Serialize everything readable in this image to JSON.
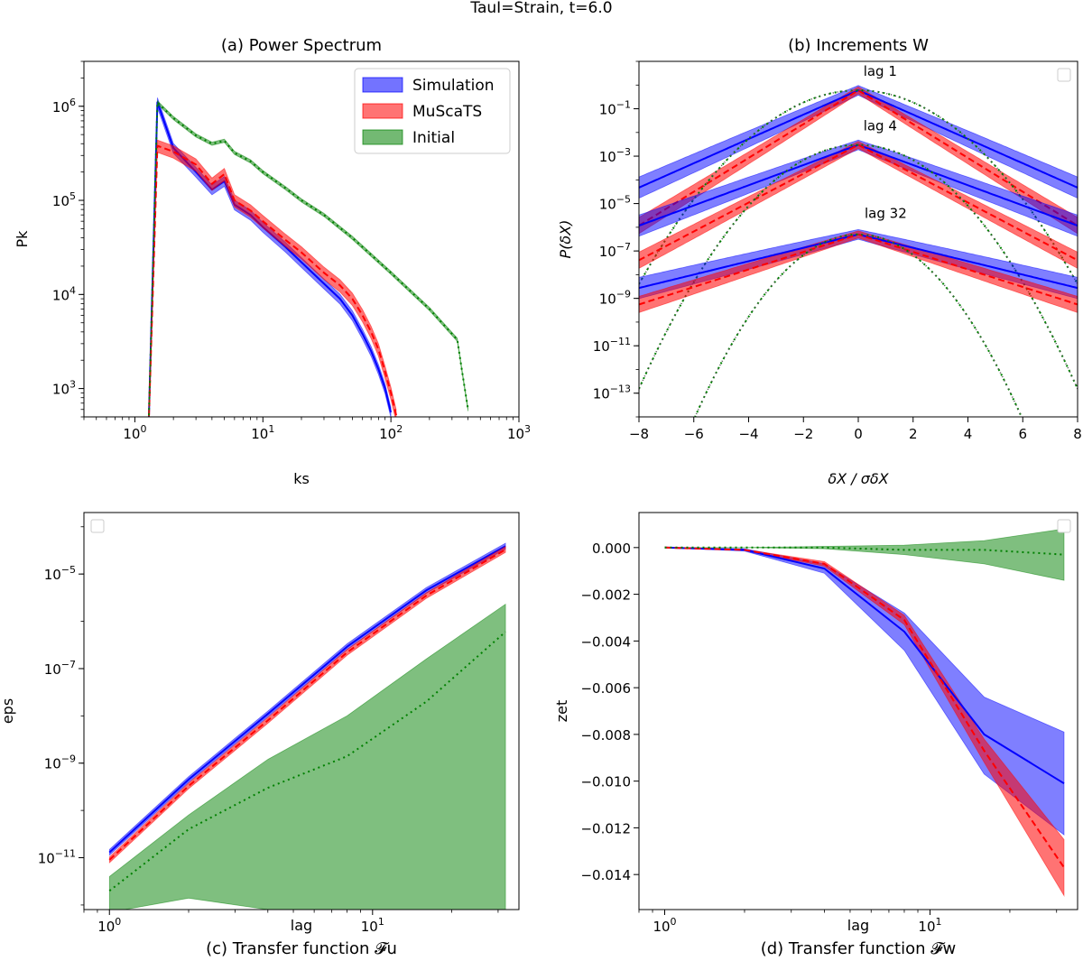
{
  "figure": {
    "suptitle": "TauI=Strain, t=6.0"
  },
  "colors": {
    "simulation": "#0000ff",
    "muscats": "#ff0000",
    "initial": "#008000",
    "gaussian": "#555555"
  },
  "chart_data": [
    {
      "id": "a",
      "type": "line",
      "title": "(a)  Power Spectrum",
      "xlabel": "ks",
      "ylabel": "Pk",
      "xscale": "log",
      "yscale": "log",
      "xlim": [
        0.4,
        1000
      ],
      "ylim": [
        500,
        3000000
      ],
      "xticks": [
        {
          "v": 1,
          "base": "10",
          "exp": "0"
        },
        {
          "v": 10,
          "base": "10",
          "exp": "1"
        },
        {
          "v": 100,
          "base": "10",
          "exp": "2"
        },
        {
          "v": 1000,
          "base": "10",
          "exp": "3"
        }
      ],
      "yticks": [
        {
          "v": 1000,
          "base": "10",
          "exp": "3"
        },
        {
          "v": 10000,
          "base": "10",
          "exp": "4"
        },
        {
          "v": 100000,
          "base": "10",
          "exp": "5"
        },
        {
          "v": 1000000,
          "base": "10",
          "exp": "6"
        }
      ],
      "legend": {
        "position": "top-right",
        "entries": [
          "Simulation",
          "MuScaTS",
          "Initial"
        ]
      },
      "series": [
        {
          "name": "Simulation",
          "color": "simulation",
          "style": "solid",
          "band": 0.12,
          "x": [
            1.28,
            1.5,
            2,
            3,
            4,
            5,
            6,
            8,
            10,
            15,
            20,
            30,
            40,
            50,
            60,
            70,
            80,
            90,
            100
          ],
          "y": [
            400,
            1100000,
            360000,
            200000,
            130000,
            160000,
            90000,
            70000,
            52000,
            32000,
            22000,
            13000,
            9000,
            6000,
            3800,
            2500,
            1600,
            1000,
            560
          ]
        },
        {
          "name": "MuScaTS",
          "color": "muscats",
          "style": "dashed",
          "band": 0.15,
          "x": [
            1.28,
            1.5,
            2,
            3,
            4,
            5,
            6,
            8,
            10,
            15,
            20,
            30,
            40,
            50,
            60,
            70,
            80,
            90,
            100,
            110
          ],
          "y": [
            400,
            380000,
            330000,
            240000,
            150000,
            190000,
            100000,
            78000,
            60000,
            38000,
            28000,
            17000,
            12500,
            9000,
            6000,
            4000,
            2600,
            1500,
            900,
            520
          ]
        },
        {
          "name": "Initial",
          "color": "initial",
          "style": "dotted",
          "band": 0.04,
          "x": [
            1.28,
            1.5,
            2,
            3,
            4,
            5,
            6,
            8,
            10,
            15,
            20,
            30,
            50,
            100,
            200,
            330,
            360,
            400
          ],
          "y": [
            400,
            1100000,
            750000,
            490000,
            400000,
            430000,
            320000,
            260000,
            200000,
            135000,
            100000,
            70000,
            40000,
            17000,
            7000,
            3300,
            1500,
            600
          ]
        }
      ]
    },
    {
      "id": "b",
      "type": "line",
      "title": "(b)  Increments W",
      "xlabel": "δX / σδX",
      "ylabel": "P(δX)",
      "xscale": "linear",
      "yscale": "log",
      "xlim": [
        -8,
        8
      ],
      "ylim": [
        1e-14,
        10
      ],
      "xticks": [
        {
          "v": -8,
          "t": "−8"
        },
        {
          "v": -6,
          "t": "−6"
        },
        {
          "v": -4,
          "t": "−4"
        },
        {
          "v": -2,
          "t": "−2"
        },
        {
          "v": 0,
          "t": "0"
        },
        {
          "v": 2,
          "t": "2"
        },
        {
          "v": 4,
          "t": "4"
        },
        {
          "v": 6,
          "t": "6"
        },
        {
          "v": 8,
          "t": "8"
        }
      ],
      "yticks": [
        {
          "v": 1e-13,
          "base": "10",
          "exp": "−13"
        },
        {
          "v": 1e-11,
          "base": "10",
          "exp": "−11"
        },
        {
          "v": 1e-09,
          "base": "10",
          "exp": "−9"
        },
        {
          "v": 1e-07,
          "base": "10",
          "exp": "−7"
        },
        {
          "v": 1e-05,
          "base": "10",
          "exp": "−5"
        },
        {
          "v": 0.001,
          "base": "10",
          "exp": "−3"
        },
        {
          "v": 0.1,
          "base": "10",
          "exp": "−1"
        }
      ],
      "legend": {
        "position": "top-right",
        "entries": []
      },
      "annotations": [
        {
          "text": "lag 1",
          "x": 0.8,
          "y": 2.5
        },
        {
          "text": "lag 4",
          "x": 0.8,
          "y": 0.012
        },
        {
          "text": "lag 32",
          "x": 1.0,
          "y": 2.5e-06
        }
      ],
      "groups": [
        {
          "lag": "lag 1",
          "peak": 0.6,
          "sim_slope": 1.18,
          "mus_slope": 1.64,
          "gauss_var": 1.7
        },
        {
          "lag": "lag 4",
          "peak": 0.003,
          "sim_slope": 0.98,
          "mus_slope": 1.4,
          "gauss_var": 1.35
        },
        {
          "lag": "lag 32",
          "peak": 5e-07,
          "sim_slope": 0.65,
          "mus_slope": 0.85,
          "gauss_var": 1.0
        }
      ]
    },
    {
      "id": "c",
      "type": "line",
      "title": "(c)  Transfer function 𝓕u",
      "xlabel": "lag",
      "ylabel": "eps",
      "xscale": "log",
      "yscale": "log",
      "xlim": [
        0.8,
        36
      ],
      "ylim": [
        8e-13,
        0.0002
      ],
      "xticks": [
        {
          "v": 1,
          "base": "10",
          "exp": "0"
        },
        {
          "v": 10,
          "base": "10",
          "exp": "1"
        }
      ],
      "yticks": [
        {
          "v": 1e-11,
          "base": "10",
          "exp": "−11"
        },
        {
          "v": 1e-09,
          "base": "10",
          "exp": "−9"
        },
        {
          "v": 1e-07,
          "base": "10",
          "exp": "−7"
        },
        {
          "v": 1e-05,
          "base": "10",
          "exp": "−5"
        }
      ],
      "legend": {
        "position": "top-left",
        "entries": []
      },
      "series": [
        {
          "name": "Simulation",
          "color": "simulation",
          "style": "solid",
          "x": [
            1,
            2,
            4,
            8,
            16,
            32
          ],
          "y": [
            1.3e-11,
            4.5e-10,
            1.1e-08,
            2.9e-07,
            4.5e-06,
            3.9e-05
          ]
        },
        {
          "name": "MuScaTS",
          "color": "muscats",
          "style": "dashed",
          "x": [
            1,
            2,
            4,
            8,
            16,
            32
          ],
          "y": [
            9e-12,
            3.3e-10,
            8e-09,
            2.2e-07,
            3.5e-06,
            3.3e-05
          ]
        },
        {
          "name": "Initial",
          "color": "initial",
          "style": "dotted",
          "x": [
            1,
            2,
            4,
            8,
            16,
            32
          ],
          "y": [
            2e-12,
            4e-11,
            3e-10,
            1.4e-09,
            2e-08,
            6e-07
          ],
          "band_upper": [
            4e-12,
            8e-11,
            1.2e-09,
            1e-08,
            1.6e-07,
            2.3e-06
          ],
          "band_lower": [
            7e-13,
            1.4e-12,
            8e-13,
            8e-13,
            8e-13,
            8e-13
          ]
        }
      ]
    },
    {
      "id": "d",
      "type": "line",
      "title": "(d)  Transfer function 𝓕w",
      "xlabel": "lag",
      "ylabel": "zet",
      "xscale": "log",
      "yscale": "linear",
      "xlim": [
        0.8,
        36
      ],
      "ylim": [
        -0.0155,
        0.0015
      ],
      "xticks": [
        {
          "v": 1,
          "base": "10",
          "exp": "0"
        },
        {
          "v": 10,
          "base": "10",
          "exp": "1"
        }
      ],
      "yticks": [
        {
          "v": 0,
          "t": "0.000"
        },
        {
          "v": -0.002,
          "t": "−0.002"
        },
        {
          "v": -0.004,
          "t": "−0.004"
        },
        {
          "v": -0.006,
          "t": "−0.006"
        },
        {
          "v": -0.008,
          "t": "−0.008"
        },
        {
          "v": -0.01,
          "t": "−0.010"
        },
        {
          "v": -0.012,
          "t": "−0.012"
        },
        {
          "v": -0.014,
          "t": "−0.014"
        }
      ],
      "legend": {
        "position": "top-right",
        "entries": []
      },
      "series": [
        {
          "name": "Simulation",
          "color": "simulation",
          "style": "solid",
          "x": [
            1,
            2,
            4,
            8,
            16,
            32
          ],
          "y": [
            0,
            -0.0001,
            -0.0009,
            -0.0036,
            -0.008,
            -0.0101
          ],
          "band_upper": [
            0,
            -5e-05,
            -0.0007,
            -0.0028,
            -0.0064,
            -0.0079
          ],
          "band_lower": [
            0,
            -0.00015,
            -0.0011,
            -0.0044,
            -0.0097,
            -0.0123
          ]
        },
        {
          "name": "MuScaTS",
          "color": "muscats",
          "style": "dashed",
          "x": [
            1,
            2,
            4,
            8,
            16,
            32
          ],
          "y": [
            0,
            -0.0001,
            -0.0007,
            -0.0031,
            -0.0087,
            -0.0137
          ],
          "band_upper": [
            0,
            -8e-05,
            -0.0006,
            -0.0029,
            -0.0082,
            -0.0125
          ],
          "band_lower": [
            0,
            -0.00012,
            -0.0008,
            -0.0033,
            -0.0092,
            -0.0149
          ]
        },
        {
          "name": "Initial",
          "color": "initial",
          "style": "dotted",
          "x": [
            1,
            2,
            4,
            8,
            16,
            32
          ],
          "y": [
            0,
            0,
            0,
            -0.0001,
            -0.0001,
            -0.0003
          ],
          "band_upper": [
            0,
            0,
            5e-05,
            0.0001,
            0.0003,
            0.0008
          ],
          "band_lower": [
            0,
            0,
            -5e-05,
            -0.0003,
            -0.0007,
            -0.0014
          ]
        }
      ]
    }
  ]
}
